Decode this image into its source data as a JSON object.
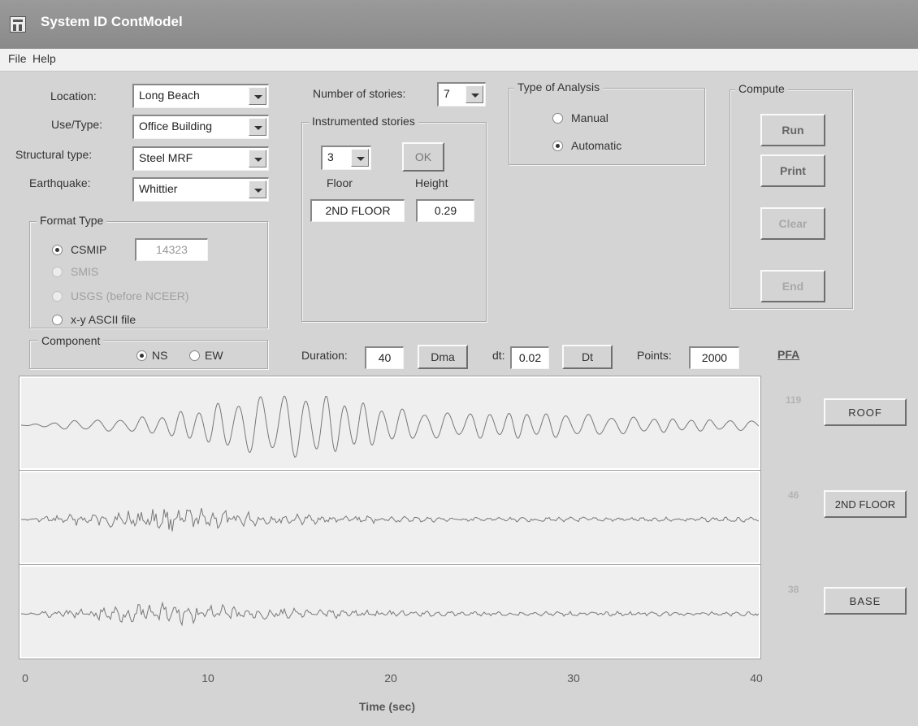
{
  "window": {
    "title": "System ID ContModel"
  },
  "menu": {
    "file": "File",
    "help": "Help"
  },
  "params": {
    "location": {
      "label": "Location:",
      "value": "Long Beach"
    },
    "use_type": {
      "label": "Use/Type:",
      "value": "Office Building"
    },
    "structural_type": {
      "label": "Structural type:",
      "value": "Steel MRF"
    },
    "earthquake": {
      "label": "Earthquake:",
      "value": "Whittier"
    }
  },
  "format_type": {
    "title": "Format Type",
    "options": [
      "CSMIP",
      "SMIS",
      "USGS (before NCEER)",
      "x-y ASCII file"
    ],
    "selected": "CSMIP",
    "station": "14323"
  },
  "component": {
    "title": "Component",
    "options": [
      "NS",
      "EW"
    ],
    "selected": "NS"
  },
  "stories": {
    "label": "Number of stories:",
    "value": "7",
    "instrumented_title": "Instrumented stories",
    "instrumented_count": "3",
    "ok_label": "OK",
    "floor_label": "Floor",
    "height_label": "Height",
    "floor_value": "2ND FLOOR",
    "height_value": "0.29"
  },
  "analysis": {
    "title": "Type of Analysis",
    "options": [
      "Manual",
      "Automatic"
    ],
    "selected": "Automatic"
  },
  "compute": {
    "title": "Compute",
    "run": "Run",
    "print": "Print",
    "clear": "Clear",
    "end": "End"
  },
  "time_params": {
    "duration_label": "Duration:",
    "duration": "40",
    "dma_label": "Dma",
    "dt_label": "dt:",
    "dt": "0.02",
    "dt_button": "Dt",
    "points_label": "Points:",
    "points": "2000"
  },
  "pfa": {
    "title": "PFA",
    "channels": [
      {
        "value": "119",
        "button": "ROOF"
      },
      {
        "value": "46",
        "button": "2ND FLOOR"
      },
      {
        "value": "38",
        "button": "BASE"
      }
    ]
  },
  "chart_data": {
    "type": "line",
    "xlabel": "Time (sec)",
    "xlim": [
      0,
      40
    ],
    "x_ticks": [
      "0",
      "10",
      "20",
      "30",
      "40"
    ],
    "series": [
      {
        "name": "ROOF",
        "peak": 119
      },
      {
        "name": "2ND FLOOR",
        "peak": 46
      },
      {
        "name": "BASE",
        "peak": 38
      }
    ],
    "colors": {
      "line": "#777777"
    }
  }
}
